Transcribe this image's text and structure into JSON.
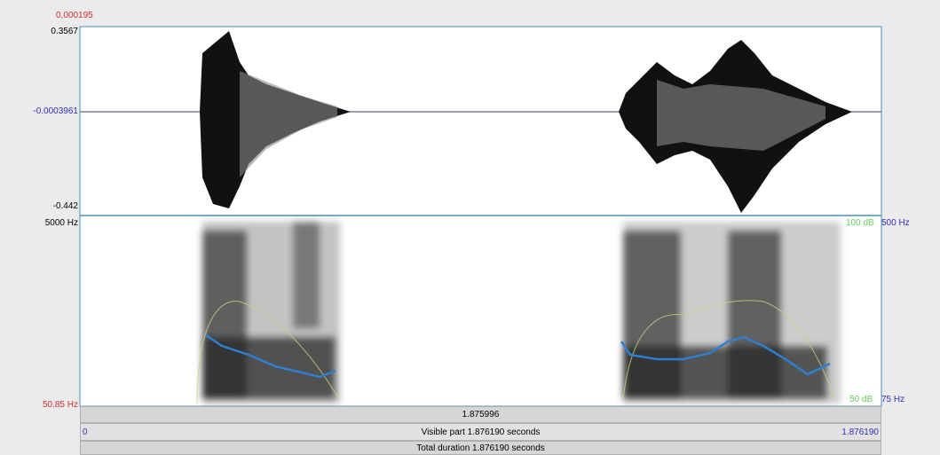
{
  "waveform": {
    "cursor_value": "0.000195",
    "max": "0.3567",
    "zero": "-0.0003961",
    "min": "-0.442"
  },
  "spectrogram": {
    "max_freq": "5000 Hz",
    "min_freq": "50.85 Hz",
    "intensity_max": "100 dB",
    "pitch_max": "500 Hz",
    "intensity_min": "50 dB",
    "pitch_min": "75 Hz"
  },
  "time_bar": {
    "cursor": "1.875996",
    "start": "0",
    "visible": "Visible part 1.876190 seconds",
    "end": "1.876190",
    "total": "Total duration 1.876190 seconds"
  }
}
